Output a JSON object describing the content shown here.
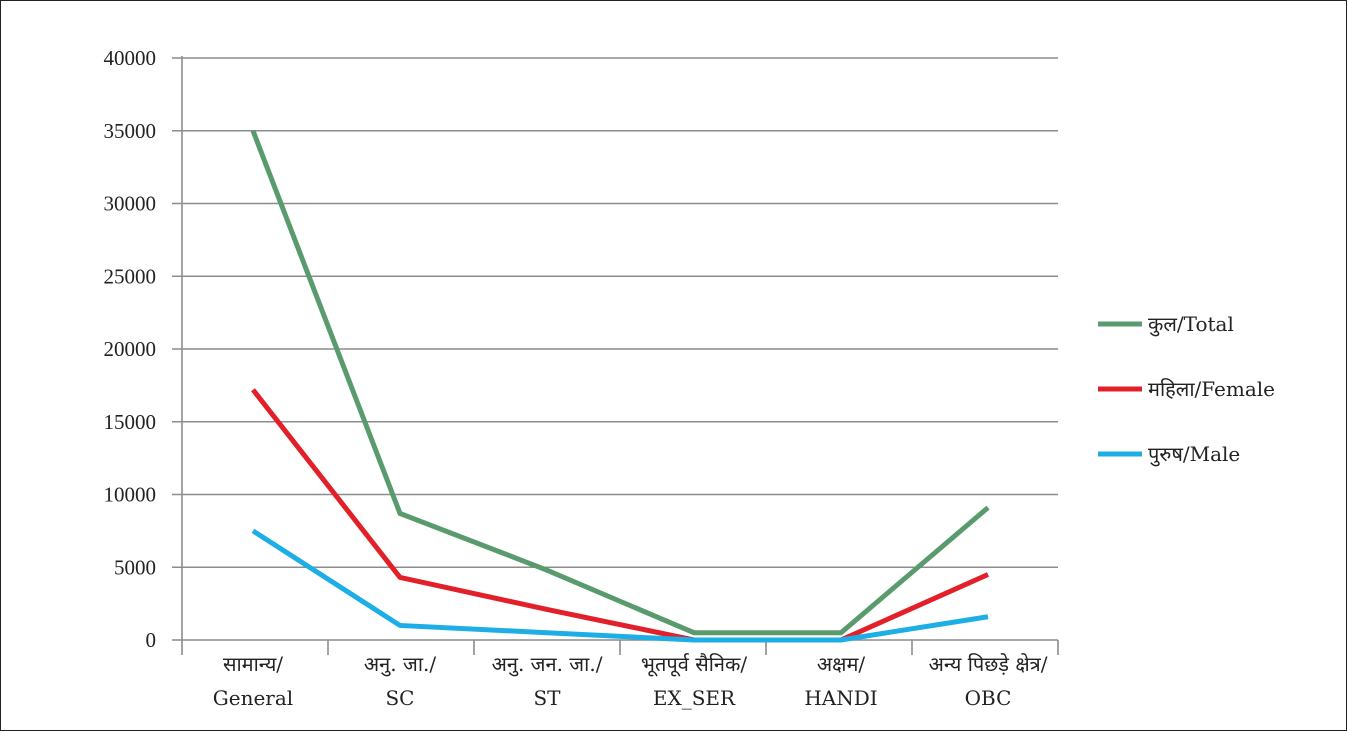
{
  "chart_data": {
    "type": "line",
    "title": "",
    "xlabel": "",
    "ylabel": "",
    "ylim": [
      0,
      40000
    ],
    "yticks": [
      0,
      5000,
      10000,
      15000,
      20000,
      25000,
      30000,
      35000,
      40000
    ],
    "grid": true,
    "legend_position": "right",
    "categories": [
      [
        "सामान्य/",
        "General"
      ],
      [
        "अनु. जा./",
        "SC"
      ],
      [
        "अनु. जन. जा./",
        "ST"
      ],
      [
        "भूतपूर्व सैनिक/",
        "EX_SER"
      ],
      [
        "अक्षम/",
        "HANDI"
      ],
      [
        "अन्य पिछड़े क्षेत्र/",
        "OBC"
      ]
    ],
    "series": [
      {
        "name": "कुल/Total",
        "color": "#5a9b6e",
        "values": [
          35000,
          8700,
          4800,
          500,
          500,
          9100
        ]
      },
      {
        "name": "महिला/Female",
        "color": "#e2202a",
        "values": [
          17200,
          4300,
          2100,
          0,
          0,
          4500
        ]
      },
      {
        "name": "पुरुष/Male",
        "color": "#1eaee6",
        "values": [
          7500,
          1000,
          500,
          0,
          0,
          1600
        ]
      }
    ]
  }
}
